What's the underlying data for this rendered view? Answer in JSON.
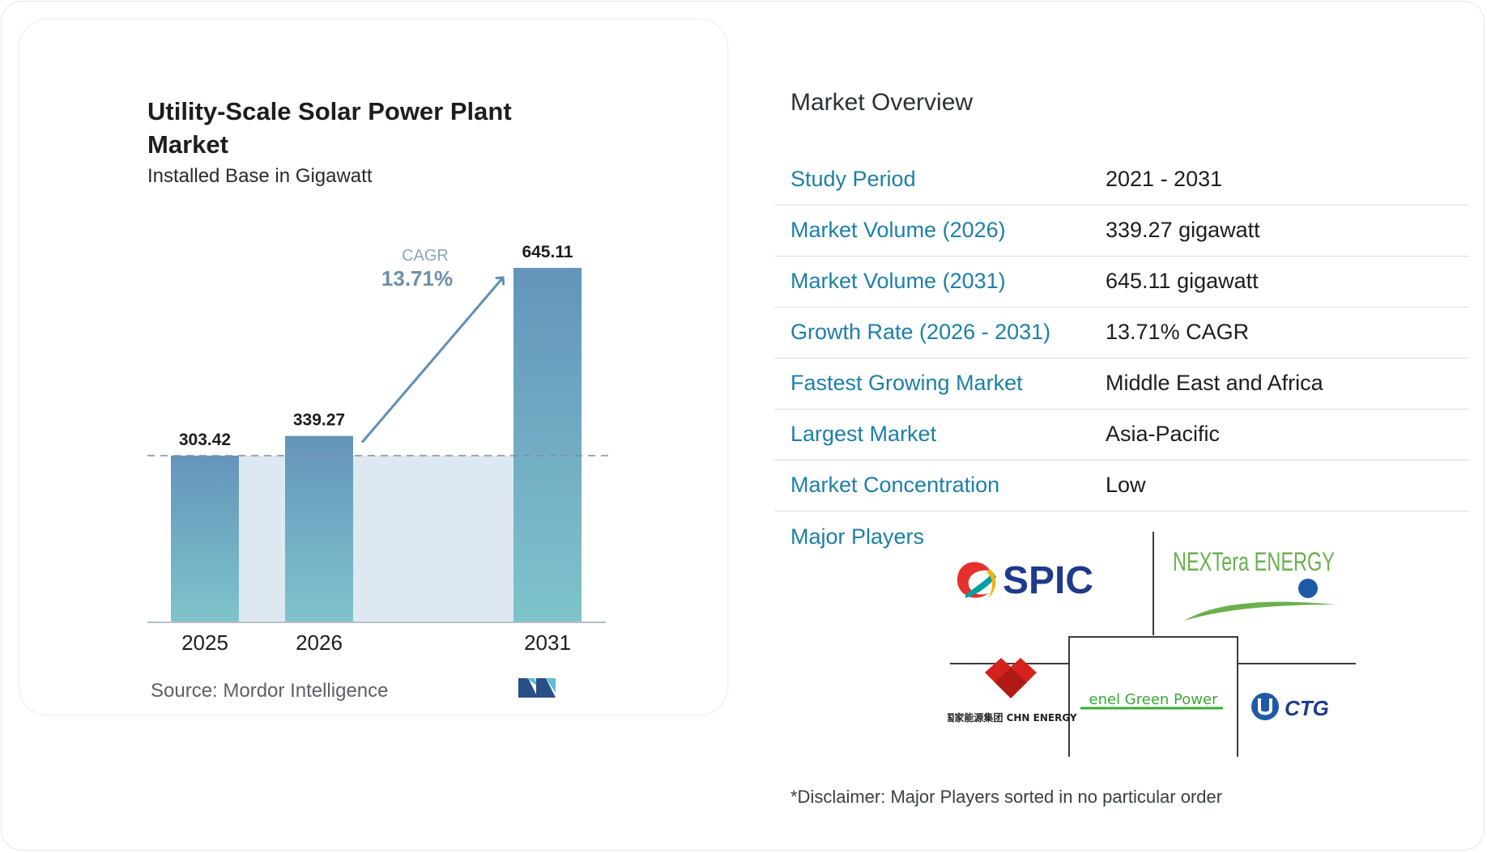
{
  "chart_data": {
    "type": "bar",
    "title": "Utility-Scale Solar Power Plant Market",
    "subtitle": "Installed Base in Gigawatt",
    "categories": [
      "2025",
      "2026",
      "2031"
    ],
    "values": [
      303.42,
      339.27,
      645.11
    ],
    "value_labels": [
      "303.42",
      "339.27",
      "645.11"
    ],
    "ylim": [
      0,
      645.11
    ],
    "grid": false,
    "annotation": {
      "label": "CAGR",
      "value": "13.71%"
    },
    "source": "Source: Mordor Intelligence",
    "colors": {
      "bar_top": "#6494bb",
      "bar_bottom": "#7ec4cb",
      "band": "#dde8f1",
      "arrow": "#5f8fb2",
      "cagr_label": "#8aa6bd",
      "cagr_value": "#6f8fa8"
    }
  },
  "overview": {
    "title": "Market Overview",
    "rows": [
      {
        "label": "Study Period",
        "value": "2021 - 2031"
      },
      {
        "label": "Market Volume (2026)",
        "value": "339.27 gigawatt"
      },
      {
        "label": "Market Volume (2031)",
        "value": "645.11 gigawatt"
      },
      {
        "label": "Growth Rate (2026 - 2031)",
        "value": "13.71% CAGR"
      },
      {
        "label": "Fastest Growing Market",
        "value": "Middle East and Africa"
      },
      {
        "label": "Largest Market",
        "value": "Asia-Pacific"
      },
      {
        "label": "Market Concentration",
        "value": "Low"
      }
    ],
    "major_players_label": "Major Players",
    "players": [
      {
        "name": "SPIC",
        "icon": "spic-logo"
      },
      {
        "name": "NEXTera ENERGY",
        "icon": "nextera-energy-logo"
      },
      {
        "name": "国家能源集团 CHN ENERGY",
        "icon": "chn-energy-logo"
      },
      {
        "name": "enel Green Power",
        "icon": "enel-green-power-logo"
      },
      {
        "name": "CTG",
        "icon": "ctg-logo"
      }
    ],
    "disclaimer": "*Disclaimer: Major Players sorted in no particular order"
  }
}
